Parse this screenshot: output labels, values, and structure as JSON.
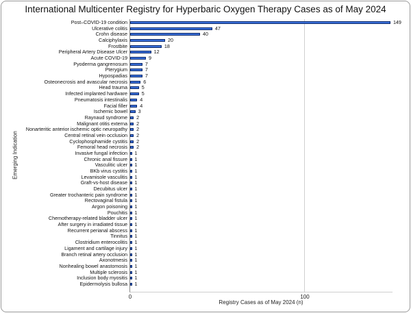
{
  "chart_data": {
    "type": "bar",
    "orientation": "horizontal",
    "title": "International Multicenter Registry for Hyperbaric Oxygen Therapy Cases as of May 2024",
    "xlabel": "Registry Cases as of May 2024 (n)",
    "ylabel": "Emerging Indication",
    "xlim": [
      0,
      150
    ],
    "xticks": [
      0,
      100
    ],
    "grid": "vertical at 100",
    "legend": "none",
    "bar_color": "#3a6fd8",
    "categories": [
      "Post–COVID-19 condition",
      "Ulcerative colitis",
      "Crohn disease",
      "Calciphylaxis",
      "Frostbite",
      "Peripheral Artery Disease Ulcer",
      "Acute COVID-19",
      "Pyoderma gangrenosum",
      "Pterygium",
      "Hypospadias",
      "Osteonecrosis and avascular necrosis",
      "Head trauma",
      "Infected implanted hardware",
      "Pneumatosis intestinalis",
      "Facial filler",
      "Ischemic bowel",
      "Raynaud syndrome",
      "Malignant otitis externa",
      "Nonarteritic anterior ischemic optic neuropathy",
      "Central retinal vein occlusion",
      "Cyclophosphamide cystitis",
      "Femoral head necrosis",
      "Invasive fungal infection",
      "Chronic anal fissure",
      "Vasculitic ulcer",
      "BKb virus cystitis",
      "Levamisole vasculitis",
      "Graft-vs-host disease",
      "Decubitus ulcer",
      "Greater trochanteric pain syndrome",
      "Rectovaginal fistula",
      "Argon poisoning",
      "Pouchitis",
      "Chemotherapy-related bladder ulcer",
      "After surgery in irradiated tissue",
      "Recurrent perianal abscess",
      "Tinnitus",
      "Clostridium enterocolitis",
      "Ligament and cartilage injury",
      "Branch retinal artery occlusion",
      "Axonotmesis",
      "Nonhealing bowel anastomosis",
      "Multiple sclerosis",
      "Inclusion body myositis",
      "Epidermolysis bullosa"
    ],
    "values": [
      149,
      47,
      40,
      20,
      18,
      12,
      9,
      7,
      7,
      7,
      6,
      5,
      5,
      4,
      4,
      3,
      2,
      2,
      2,
      2,
      2,
      2,
      1,
      1,
      1,
      1,
      1,
      1,
      1,
      1,
      1,
      1,
      1,
      1,
      1,
      1,
      1,
      1,
      1,
      1,
      1,
      1,
      1,
      1,
      1
    ]
  }
}
